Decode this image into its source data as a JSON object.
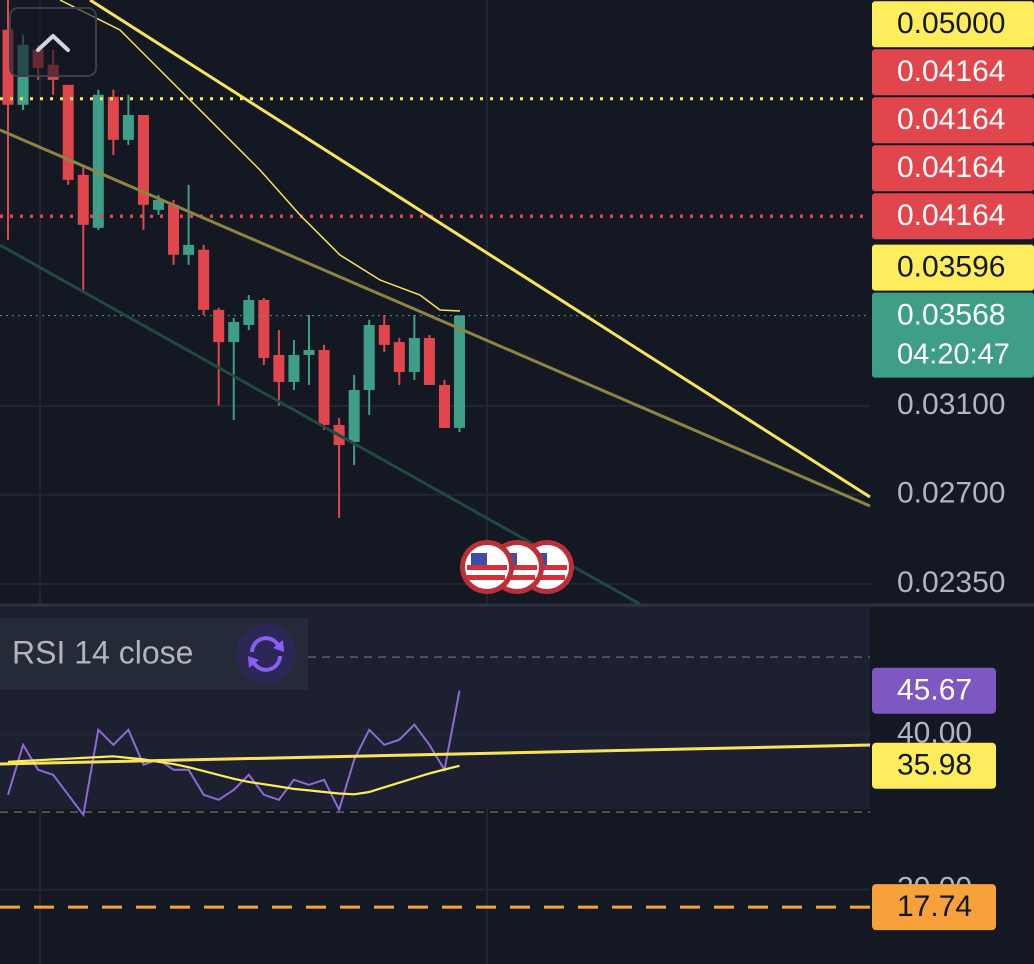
{
  "chart_data": [
    {
      "type": "candlestick",
      "up_color": "#3f9e88",
      "down_color": "#e2464d",
      "log_scale": true,
      "grid": true,
      "ylim": [
        0.02278,
        0.0583
      ],
      "yticks": [
        {
          "value": 0.031,
          "label": "0.03100"
        },
        {
          "value": 0.027,
          "label": "0.02700"
        },
        {
          "value": 0.0235,
          "label": "0.02350"
        }
      ],
      "open": [
        0.05566,
        0.04953,
        0.05395,
        0.05271,
        0.05109,
        0.04441,
        0.0409,
        0.05015,
        0.0469,
        0.04875,
        0.04206,
        0.04239,
        0.03922,
        0.03953,
        0.036,
        0.03424,
        0.03516,
        0.03656,
        0.03356,
        0.03218,
        0.03356,
        0.03382,
        0.0301,
        0.02931,
        0.03178,
        0.03516,
        0.03424,
        0.03268,
        0.03446,
        0.03203,
        0.02996
      ],
      "high": [
        0.05832,
        0.05523,
        0.05437,
        0.05395,
        0.05109,
        0.04511,
        0.0507,
        0.0507,
        0.05031,
        0.04875,
        0.04305,
        0.04272,
        0.04373,
        0.03983,
        0.03611,
        0.03555,
        0.03684,
        0.03667,
        0.03489,
        0.03435,
        0.03571,
        0.03409,
        0.03043,
        0.03253,
        0.03544,
        0.03571,
        0.03446,
        0.03571,
        0.03462,
        0.03228,
        0.03571
      ],
      "low": [
        0.04014,
        0.04913,
        0.05149,
        0.05031,
        0.04373,
        0.03713,
        0.04077,
        0.04581,
        0.04653,
        0.04077,
        0.04173,
        0.03861,
        0.03861,
        0.03571,
        0.03102,
        0.03033,
        0.03489,
        0.03304,
        0.03102,
        0.03178,
        0.03203,
        0.02986,
        0.02604,
        0.02828,
        0.03057,
        0.03372,
        0.03203,
        0.03228,
        0.03203,
        0.02996,
        0.02977
      ],
      "close": [
        0.04953,
        0.05437,
        0.05246,
        0.05149,
        0.04407,
        0.04109,
        0.05031,
        0.0469,
        0.04875,
        0.04239,
        0.04272,
        0.03922,
        0.03983,
        0.036,
        0.03424,
        0.03533,
        0.03656,
        0.0334,
        0.03218,
        0.03356,
        0.03382,
        0.0301,
        0.02917,
        0.03178,
        0.03516,
        0.03409,
        0.03268,
        0.03446,
        0.03203,
        0.02996,
        0.03568
      ],
      "price_tags": [
        {
          "value": 0.05,
          "label": "0.05000",
          "color": "#fdec5c",
          "text_color": "#131722",
          "line_style": "dotted"
        },
        {
          "value": 0.04164,
          "label": "0.04164",
          "color": "#e2464d",
          "text_color": "#ffffff",
          "line_style": "dotted"
        },
        {
          "value": 0.04164,
          "label": "0.04164",
          "color": "#e2464d",
          "text_color": "#ffffff",
          "line_style": "dotted"
        },
        {
          "value": 0.04164,
          "label": "0.04164",
          "color": "#e2464d",
          "text_color": "#ffffff",
          "line_style": "dotted"
        },
        {
          "value": 0.04164,
          "label": "0.04164",
          "color": "#e2464d",
          "text_color": "#ffffff",
          "line_style": "dotted"
        },
        {
          "value": 0.03596,
          "label": "0.03596",
          "color": "#fdec5c",
          "text_color": "#131722"
        },
        {
          "value": 0.03568,
          "label": "0.03568",
          "countdown": "04:20:47",
          "color": "#3f9e88",
          "text_color": "#ffffff",
          "line_style": "hairline"
        }
      ]
    },
    {
      "type": "line",
      "title": "RSI 14 close",
      "ylim": [
        10.4,
        56.6
      ],
      "yticks": [
        {
          "value": 40,
          "label": "40.00"
        },
        {
          "value": 20,
          "label": "20.00"
        }
      ],
      "bands": [
        50,
        30
      ],
      "series": [
        {
          "color": "#8f6ad6",
          "values": [
            32.23,
            38.69,
            35.46,
            34.82,
            32.23,
            29.65,
            40.63,
            38.69,
            40.63,
            36.11,
            36.76,
            35.46,
            35.46,
            32.23,
            31.59,
            32.88,
            34.82,
            32.23,
            31.59,
            34.17,
            33.53,
            34.17,
            30.3,
            36.76,
            40.63,
            38.69,
            39.34,
            41.28,
            38.69,
            35.46,
            45.67
          ]
        },
        {
          "color": "#fdec5c",
          "values": [
            36.5,
            36.6,
            36.7,
            36.8,
            36.9,
            37.0,
            37.1,
            37.2,
            37.0,
            36.8,
            36.5,
            36.2,
            35.8,
            35.3,
            34.8,
            34.3,
            33.9,
            33.6,
            33.3,
            33.0,
            32.8,
            32.6,
            32.4,
            32.3,
            32.6,
            33.2,
            33.8,
            34.4,
            35.0,
            35.5,
            35.98
          ]
        }
      ],
      "value_tags": [
        {
          "value": 45.67,
          "color": "#7e57c2",
          "text_color": "#ffffff"
        },
        {
          "value": 35.98,
          "color": "#fdec5c",
          "text_color": "#131722"
        },
        {
          "value": 17.74,
          "color": "#f6a13a",
          "text_color": "#131722",
          "line_style": "dashed"
        }
      ]
    }
  ]
}
